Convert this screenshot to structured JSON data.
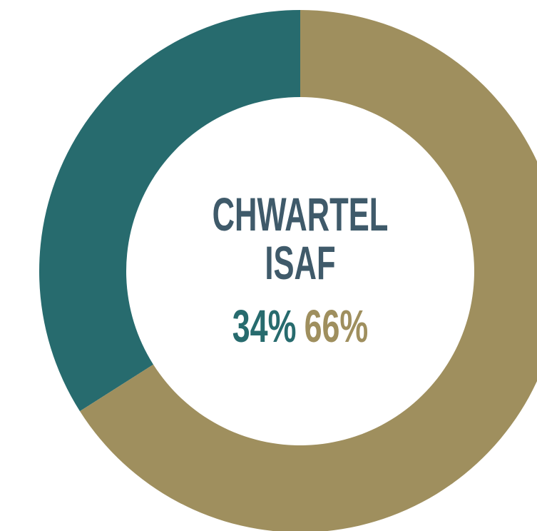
{
  "chart_data": {
    "type": "donut",
    "title": "CHWARTEL ISAF",
    "values": [
      34,
      66
    ],
    "value_labels": [
      "34%",
      "66%"
    ],
    "colors": [
      "#276b6e",
      "#9f8f5e"
    ]
  }
}
